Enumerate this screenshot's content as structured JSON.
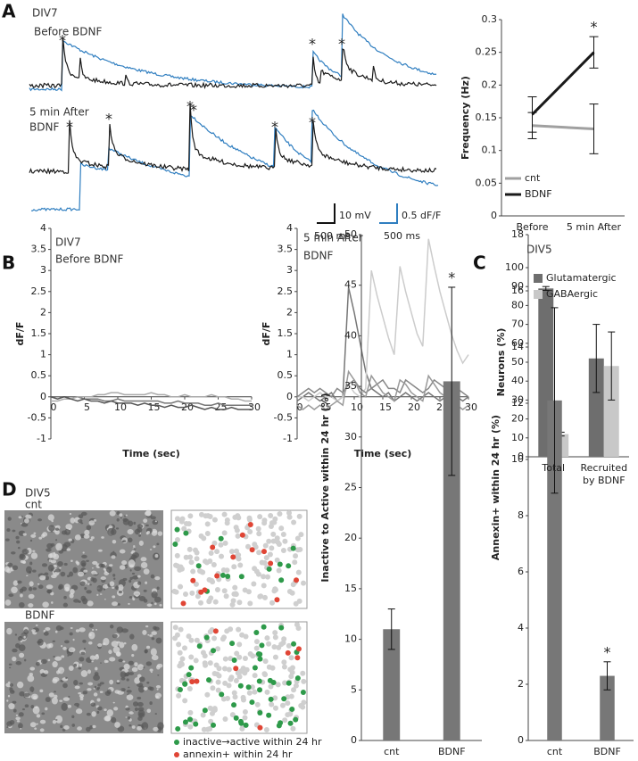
{
  "figure": {
    "panel_labels": [
      "A",
      "B",
      "C",
      "D"
    ],
    "panel_a": {
      "culture": "DIV7",
      "condition_before": "Before BDNF",
      "condition_after": [
        "5 min After",
        "BDNF"
      ],
      "spike_marker": "*",
      "scale_bars": [
        "10 mV",
        "500 ms",
        "0.5 dF/F",
        "500 ms"
      ]
    },
    "panel_b": {
      "culture": "DIV7",
      "condition_before": "Before BDNF",
      "condition_after": [
        "5 min After",
        "BDNF"
      ]
    },
    "panel_d": {
      "culture": "DIV5",
      "conditions": [
        "cnt",
        "BDNF"
      ],
      "map_legend": [
        "inactive→active within 24 hr",
        "annexin+ within 24 hr"
      ]
    }
  },
  "chart_data": [
    {
      "type": "line",
      "ylabel": "Frequency (Hz)",
      "categories": [
        "Before",
        "5 min After"
      ],
      "series": [
        {
          "name": "cnt",
          "color": "#a0a0a0",
          "values": [
            0.138,
            0.133
          ],
          "errors": [
            0.02,
            0.038
          ]
        },
        {
          "name": "BDNF",
          "color": "#1a1a1a",
          "values": [
            0.155,
            0.25
          ],
          "errors": [
            0.027,
            0.024
          ]
        }
      ],
      "ylim": [
        0,
        0.3
      ],
      "yticks": [
        0,
        0.05,
        0.1,
        0.15,
        0.2,
        0.25,
        0.3
      ],
      "legend": "lower left",
      "annotation": "*"
    },
    {
      "type": "line",
      "xlabel": "Time (sec)",
      "ylabel": "dF/F",
      "x": [
        0,
        1,
        2,
        3,
        4,
        5,
        6,
        7,
        8,
        9,
        10,
        11,
        12,
        13,
        14,
        15,
        16,
        17,
        18,
        19,
        20,
        21,
        22,
        23,
        24,
        25,
        26,
        27,
        28,
        29,
        30
      ],
      "series": [
        {
          "color": "#777777",
          "values": [
            0,
            0,
            0,
            0,
            0,
            -0.05,
            -0.05,
            -0.05,
            -0.1,
            -0.1,
            -0.05,
            -0.1,
            -0.1,
            -0.1,
            -0.1,
            -0.1,
            -0.1,
            -0.15,
            -0.15,
            -0.1,
            -0.15,
            -0.15,
            -0.15,
            -0.2,
            -0.2,
            -0.15,
            -0.2,
            -0.2,
            -0.2,
            -0.2,
            -0.2
          ]
        },
        {
          "color": "#aaaaaa",
          "values": [
            -0.1,
            -0.1,
            -0.05,
            -0.05,
            0,
            0,
            0,
            0.05,
            0.05,
            0.1,
            0.1,
            0.05,
            0.05,
            0.05,
            0.05,
            0.1,
            0.05,
            0.05,
            0,
            0,
            0.05,
            0,
            0,
            0,
            0.05,
            0,
            0,
            -0.05,
            -0.05,
            -0.1,
            -0.1
          ]
        },
        {
          "color": "#555555",
          "values": [
            0,
            -0.05,
            0,
            -0.05,
            -0.1,
            -0.05,
            -0.1,
            -0.1,
            -0.15,
            -0.1,
            -0.15,
            -0.15,
            -0.15,
            -0.2,
            -0.15,
            -0.2,
            -0.2,
            -0.25,
            -0.2,
            -0.25,
            -0.25,
            -0.2,
            -0.25,
            -0.3,
            -0.25,
            -0.3,
            -0.3,
            -0.25,
            -0.3,
            -0.3,
            -0.3
          ]
        }
      ],
      "xlim": [
        0,
        30
      ],
      "ylim": [
        -1,
        4
      ],
      "xticks": [
        0,
        5,
        10,
        15,
        20,
        25,
        30
      ],
      "yticks": [
        -1,
        -0.5,
        0,
        0.5,
        1,
        1.5,
        2,
        2.5,
        3,
        3.5,
        4
      ]
    },
    {
      "type": "line",
      "xlabel": "Time (sec)",
      "ylabel": "dF/F",
      "x": [
        0,
        1,
        2,
        3,
        4,
        5,
        6,
        7,
        8,
        9,
        10,
        11,
        12,
        13,
        14,
        15,
        16,
        17,
        18,
        19,
        20,
        21,
        22,
        23,
        24,
        25,
        26,
        27,
        28,
        29,
        30
      ],
      "series": [
        {
          "color": "#777777",
          "values": [
            -0.1,
            0,
            0.1,
            0,
            -0.1,
            0,
            0.1,
            -0.1,
            0,
            2.6,
            2.0,
            1.3,
            0.6,
            0.2,
            0.1,
            0,
            0.1,
            -0.1,
            0,
            0.1,
            0,
            -0.1,
            0,
            0.1,
            0,
            -0.1,
            0,
            0.1,
            0,
            -0.1,
            0
          ]
        },
        {
          "color": "#cccccc",
          "values": [
            0,
            0,
            -0.1,
            0,
            0.1,
            0,
            0,
            -0.1,
            0,
            0.3,
            0.1,
            0,
            0.2,
            3.0,
            2.4,
            1.9,
            1.4,
            1.0,
            3.1,
            2.5,
            2.0,
            1.5,
            1.2,
            3.75,
            3.1,
            2.5,
            2.0,
            1.5,
            1.1,
            0.8,
            1.0
          ]
        },
        {
          "color": "#888888",
          "values": [
            0,
            0.1,
            0.2,
            0.1,
            0.2,
            0.1,
            0,
            0.2,
            0.1,
            0.3,
            0.4,
            0.2,
            0.1,
            0.2,
            0.3,
            0.4,
            0.2,
            0.2,
            0.1,
            0.4,
            0.3,
            0.2,
            0.1,
            0.2,
            0.4,
            0.3,
            0.2,
            0.1,
            0.2,
            0.1,
            0
          ]
        },
        {
          "color": "#9a9a9a",
          "values": [
            -0.2,
            -0.3,
            -0.2,
            -0.3,
            -0.2,
            -0.3,
            -0.2,
            -0.1,
            -0.2,
            0.6,
            0.4,
            0.1,
            0,
            0.5,
            0.3,
            0.1,
            0,
            -0.1,
            0.4,
            0.3,
            0.1,
            0,
            -0.1,
            0.5,
            0.3,
            0.1,
            0,
            -0.1,
            -0.2,
            -0.3,
            -0.2
          ]
        }
      ],
      "xlim": [
        0,
        30
      ],
      "ylim": [
        -1,
        4
      ],
      "xticks": [
        0,
        5,
        10,
        15,
        20,
        25,
        30
      ],
      "yticks": [
        -1,
        -0.5,
        0,
        0.5,
        1,
        1.5,
        2,
        2.5,
        3,
        3.5,
        4
      ]
    },
    {
      "type": "bar",
      "title": "DIV5",
      "ylabel": "Neurons (%)",
      "categories": [
        "Total",
        "Recruited by BDNF"
      ],
      "series": [
        {
          "name": "Glutamatergic",
          "color": "#6e6e6e",
          "values": [
            89,
            52
          ],
          "errors": [
            1,
            18
          ]
        },
        {
          "name": "GABAergic",
          "color": "#c8c8c8",
          "values": [
            12,
            48
          ],
          "errors": [
            1,
            18
          ]
        }
      ],
      "ylim": [
        0,
        100
      ],
      "yticks": [
        0,
        10,
        20,
        30,
        40,
        50,
        60,
        70,
        80,
        90,
        100
      ],
      "legend": "upper left"
    },
    {
      "type": "bar",
      "ylabel": "Inactive to Active within 24 hr (%)",
      "categories": [
        "cnt",
        "BDNF"
      ],
      "series": [
        {
          "color": "#777777",
          "values": [
            11,
            35.5
          ],
          "errors": [
            2,
            9.3
          ]
        }
      ],
      "ylim": [
        0,
        50
      ],
      "yticks": [
        0,
        5,
        10,
        15,
        20,
        25,
        30,
        35,
        40,
        45,
        50
      ],
      "annotation": "*"
    },
    {
      "type": "bar",
      "ylabel": "Annexin+ within 24 hr (%)",
      "categories": [
        "cnt",
        "BDNF"
      ],
      "series": [
        {
          "color": "#777777",
          "values": [
            12.1,
            2.3
          ],
          "errors": [
            3.3,
            0.5
          ]
        }
      ],
      "ylim": [
        0,
        18
      ],
      "yticks": [
        0,
        2,
        4,
        6,
        8,
        10,
        12,
        14,
        16,
        18
      ],
      "annotation": "*"
    }
  ]
}
